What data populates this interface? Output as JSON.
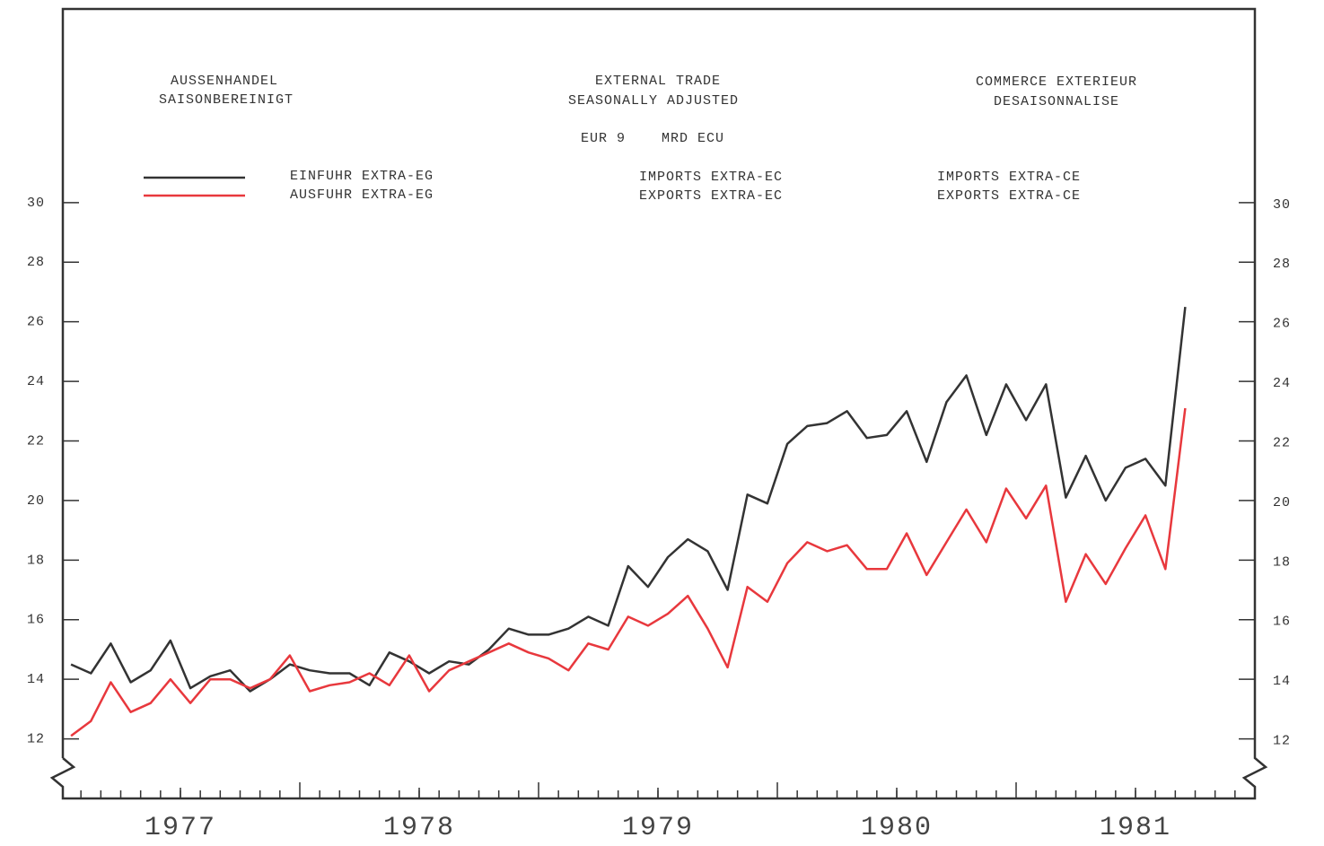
{
  "chart_data": {
    "type": "line",
    "title_de": [
      "AUSSENHANDEL",
      "SAISONBEREINIGT"
    ],
    "title": [
      "EXTERNAL TRADE",
      "SEASONALLY ADJUSTED"
    ],
    "title_fr": [
      "COMMERCE EXTERIEUR",
      "DESAISONNALISE"
    ],
    "unit_label": [
      "EUR 9",
      "MRD ECU"
    ],
    "legend_de": [
      "EINFUHR EXTRA-EG",
      "AUSFUHR EXTRA-EG"
    ],
    "legend_fr": [
      "IMPORTS EXTRA-CE",
      "EXPORTS EXTRA-CE"
    ],
    "x": [
      1977.0417,
      1977.125,
      1977.2083,
      1977.2917,
      1977.375,
      1977.4583,
      1977.5417,
      1977.625,
      1977.7083,
      1977.7917,
      1977.875,
      1977.9583,
      1978.0417,
      1978.125,
      1978.2083,
      1978.2917,
      1978.375,
      1978.4583,
      1978.5417,
      1978.625,
      1978.7083,
      1978.7917,
      1978.875,
      1978.9583,
      1979.0417,
      1979.125,
      1979.2083,
      1979.2917,
      1979.375,
      1979.4583,
      1979.5417,
      1979.625,
      1979.7083,
      1979.7917,
      1979.875,
      1979.9583,
      1980.0417,
      1980.125,
      1980.2083,
      1980.2917,
      1980.375,
      1980.4583,
      1980.5417,
      1980.625,
      1980.7083,
      1980.7917,
      1980.875,
      1980.9583,
      1981.0417,
      1981.125,
      1981.2083,
      1981.2917,
      1981.375,
      1981.4583,
      1981.5417,
      1981.625,
      1981.7083
    ],
    "series": [
      {
        "name": "IMPORTS EXTRA-EC",
        "color": "#333333",
        "values": [
          14.5,
          14.2,
          15.2,
          13.9,
          14.3,
          15.3,
          13.7,
          14.1,
          14.3,
          13.6,
          14.0,
          14.5,
          14.3,
          14.2,
          14.2,
          13.8,
          14.9,
          14.6,
          14.2,
          14.6,
          14.5,
          15.0,
          15.7,
          15.5,
          15.5,
          15.7,
          16.1,
          15.8,
          17.8,
          17.1,
          18.1,
          18.7,
          18.3,
          17.0,
          20.2,
          19.9,
          21.9,
          22.5,
          22.6,
          23.0,
          22.1,
          22.2,
          23.0,
          21.3,
          23.3,
          24.2,
          22.2,
          23.9,
          22.7,
          23.9,
          20.1,
          21.5,
          20.0,
          21.1,
          21.4,
          20.5,
          26.5
        ]
      },
      {
        "name": "EXPORTS EXTRA-EC",
        "color": "#e8383d",
        "values": [
          12.1,
          12.6,
          13.9,
          12.9,
          13.2,
          14.0,
          13.2,
          14.0,
          14.0,
          13.7,
          14.0,
          14.8,
          13.6,
          13.8,
          13.9,
          14.2,
          13.8,
          14.8,
          13.6,
          14.3,
          14.6,
          14.9,
          15.2,
          14.9,
          14.7,
          14.3,
          15.2,
          15.0,
          16.1,
          15.8,
          16.2,
          16.8,
          15.7,
          14.4,
          17.1,
          16.6,
          17.9,
          18.6,
          18.3,
          18.5,
          17.7,
          17.7,
          18.9,
          17.5,
          18.6,
          19.7,
          18.6,
          20.4,
          19.4,
          20.5,
          16.6,
          18.2,
          17.2,
          18.4,
          19.5,
          17.7,
          23.1
        ]
      }
    ],
    "xlim": [
      1977,
      1982
    ],
    "xticks": [
      {
        "value": 1977.5,
        "label": "1977"
      },
      {
        "value": 1978.5,
        "label": "1978"
      },
      {
        "value": 1979.5,
        "label": "1979"
      },
      {
        "value": 1980.5,
        "label": "1980"
      },
      {
        "value": 1981.5,
        "label": "1981"
      }
    ],
    "ylim": [
      10,
      36.5
    ],
    "yticks": [
      12,
      14,
      16,
      18,
      20,
      22,
      24,
      26,
      28,
      30
    ],
    "grid": false
  }
}
